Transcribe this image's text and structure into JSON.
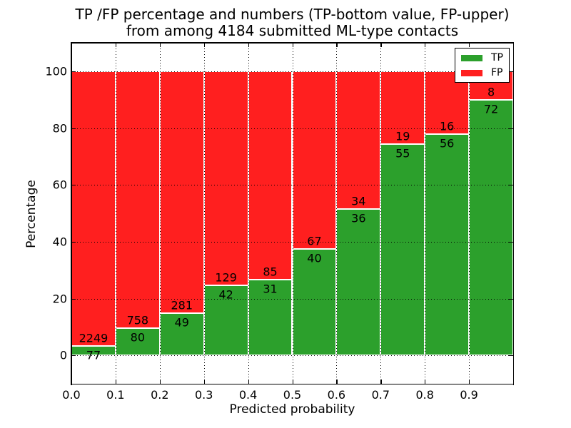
{
  "chart_data": {
    "type": "bar",
    "stacked": true,
    "normalized_to_percent": true,
    "title_lines": [
      "TP /FP percentage and numbers (TP-bottom value, FP-upper)",
      "from among 4184 submitted ML-type contacts"
    ],
    "xlabel": "Predicted probability",
    "ylabel": "Percentage",
    "total_contacts": 4184,
    "bin_width": 0.1,
    "bin_starts": [
      0.0,
      0.1,
      0.2,
      0.3,
      0.4,
      0.5,
      0.6,
      0.7,
      0.8,
      0.9
    ],
    "series": [
      {
        "name": "TP",
        "color": "#2ca02c",
        "counts": [
          77,
          80,
          49,
          42,
          31,
          40,
          36,
          55,
          56,
          72
        ]
      },
      {
        "name": "FP",
        "color": "#ff1f1f",
        "counts": [
          2249,
          758,
          281,
          129,
          85,
          67,
          34,
          19,
          16,
          8
        ]
      }
    ],
    "tp_percent": [
      3.31,
      9.55,
      14.85,
      24.56,
      26.72,
      37.38,
      51.43,
      74.32,
      77.78,
      90.0
    ],
    "xticks": [
      "0.0",
      "0.1",
      "0.2",
      "0.3",
      "0.4",
      "0.5",
      "0.6",
      "0.7",
      "0.8",
      "0.9"
    ],
    "yticks": [
      0,
      20,
      40,
      60,
      80,
      100
    ],
    "xlim": [
      0.0,
      1.0
    ],
    "ylim": [
      -10,
      110
    ],
    "grid": {
      "on": true,
      "style": "dotted",
      "color": "#000000"
    },
    "legend": {
      "position": "upper right",
      "entries": [
        {
          "label": "TP",
          "color": "#2ca02c"
        },
        {
          "label": "FP",
          "color": "#ff1f1f"
        }
      ]
    },
    "bar_edge_color": "#ffffff",
    "background_color": "#ffffff"
  }
}
